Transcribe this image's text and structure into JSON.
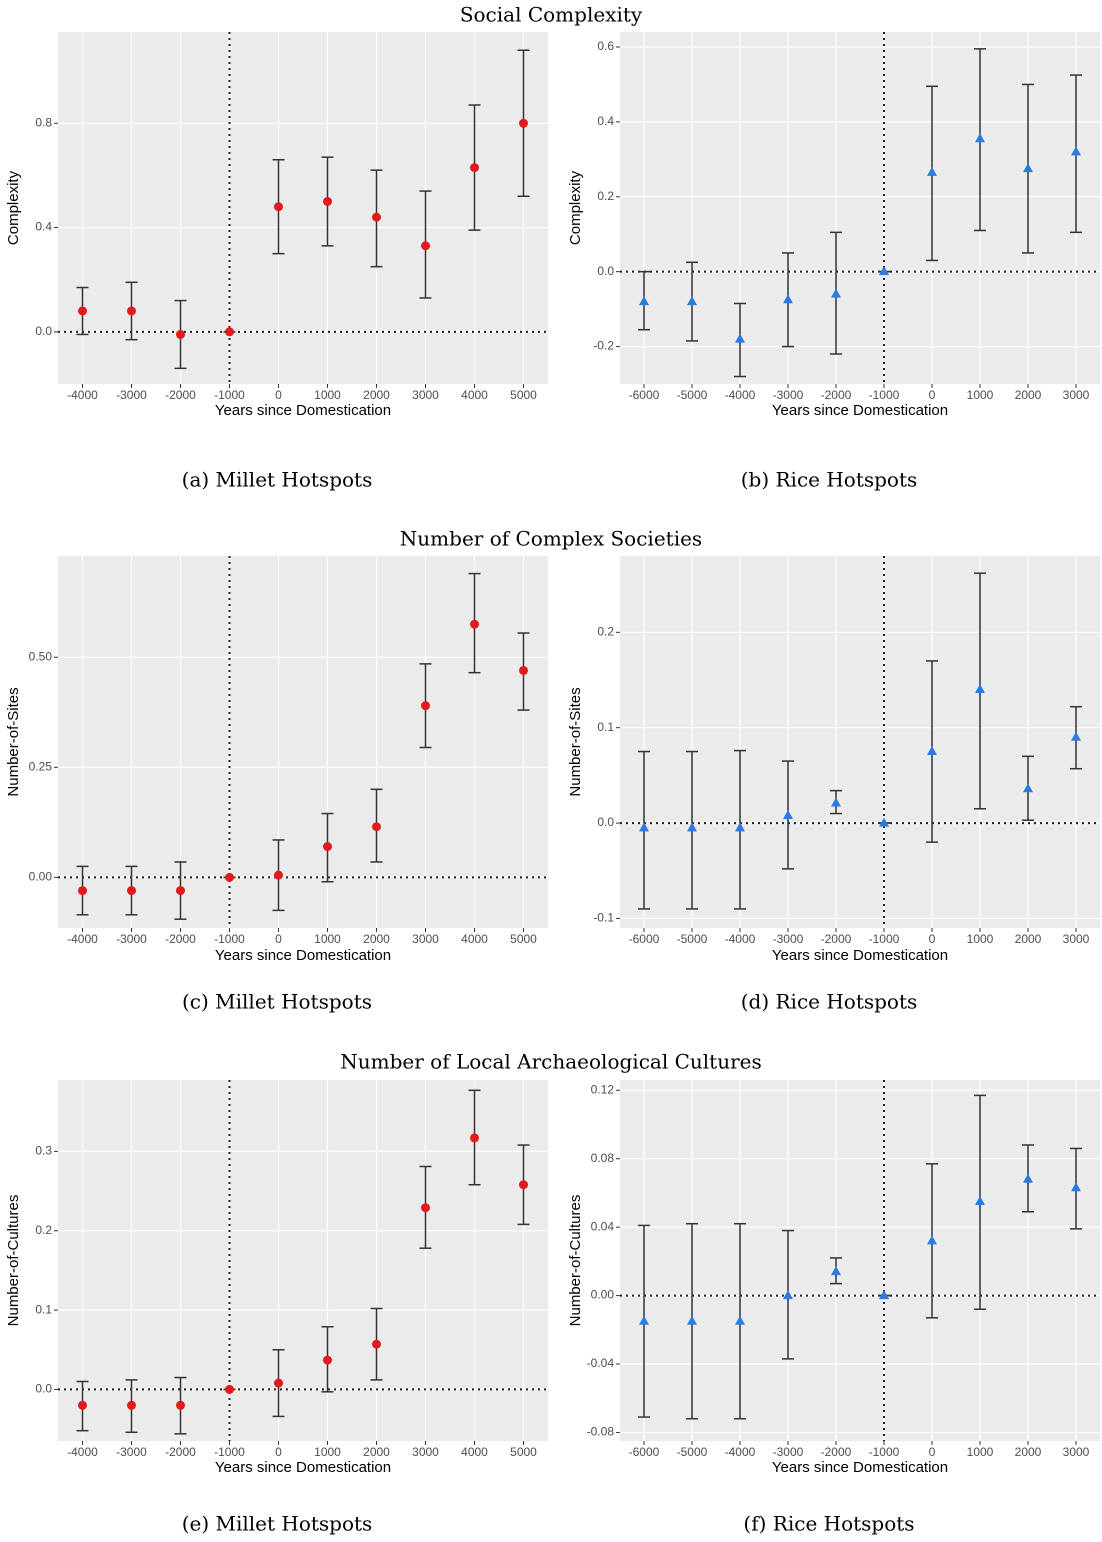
{
  "section_titles": [
    "Social Complexity",
    "Number of Complex Societies",
    "Number of Local Archaeological Cultures"
  ],
  "chart_data": [
    {
      "type": "scatter",
      "caption": "(a) Millet Hotspots",
      "x_label": "Years since Domestication",
      "y_label": "Complexity",
      "x": [
        -4000,
        -3000,
        -2000,
        -1000,
        0,
        1000,
        2000,
        3000,
        4000,
        5000
      ],
      "xlim": [
        -4500,
        5500
      ],
      "xticks": [
        -4000,
        -3000,
        -2000,
        -1000,
        0,
        1000,
        2000,
        3000,
        4000,
        5000
      ],
      "ylim": [
        -0.2,
        1.15
      ],
      "yticks": [
        {
          "value": 0,
          "label": "0.0"
        },
        0.4,
        0.8
      ],
      "grid": true,
      "vline": -1000,
      "hline": 0,
      "series": [
        {
          "color": "#e31a1c",
          "marker": "circle",
          "values": [
            0.08,
            0.08,
            -0.01,
            0,
            0.48,
            0.5,
            0.44,
            0.33,
            0.63,
            0.8
          ],
          "lower": [
            -0.01,
            -0.03,
            -0.14,
            0,
            0.3,
            0.33,
            0.25,
            0.13,
            0.39,
            0.52
          ],
          "upper": [
            0.17,
            0.19,
            0.12,
            0,
            0.66,
            0.67,
            0.62,
            0.54,
            0.87,
            1.08
          ]
        }
      ]
    },
    {
      "type": "scatter",
      "caption": "(b) Rice Hotspots",
      "x_label": "Years since Domestication",
      "y_label": "Complexity",
      "x": [
        -6000,
        -5000,
        -4000,
        -3000,
        -2000,
        -1000,
        0,
        1000,
        2000,
        3000
      ],
      "xlim": [
        -6500,
        3500
      ],
      "xticks": [
        -6000,
        -5000,
        -4000,
        -3000,
        -2000,
        -1000,
        0,
        1000,
        2000,
        3000
      ],
      "ylim": [
        -0.3,
        0.64
      ],
      "yticks": [
        -0.2,
        {
          "value": 0,
          "label": "0.0"
        },
        0.2,
        0.4,
        0.6
      ],
      "grid": true,
      "vline": -1000,
      "hline": 0,
      "series": [
        {
          "color": "#2b7bde",
          "marker": "triangle",
          "values": [
            -0.08,
            -0.08,
            -0.18,
            -0.075,
            -0.06,
            0,
            0.265,
            0.355,
            0.275,
            0.32
          ],
          "lower": [
            -0.155,
            -0.185,
            -0.28,
            -0.2,
            -0.22,
            0,
            0.03,
            0.11,
            0.05,
            0.105
          ],
          "upper": [
            0,
            0.025,
            -0.085,
            0.05,
            0.105,
            0,
            0.495,
            0.595,
            0.5,
            0.525
          ]
        }
      ]
    },
    {
      "type": "scatter",
      "caption": "(c) Millet Hotspots",
      "x_label": "Years since Domestication",
      "y_label": "Number-of-Sites",
      "x": [
        -4000,
        -3000,
        -2000,
        -1000,
        0,
        1000,
        2000,
        3000,
        4000,
        5000
      ],
      "xlim": [
        -4500,
        5500
      ],
      "xticks": [
        -4000,
        -3000,
        -2000,
        -1000,
        0,
        1000,
        2000,
        3000,
        4000,
        5000
      ],
      "ylim": [
        -0.115,
        0.73
      ],
      "yticks": [
        {
          "value": 0,
          "label": "0.00"
        },
        0.25,
        {
          "value": 0.5,
          "label": "0.50"
        }
      ],
      "grid": true,
      "vline": -1000,
      "hline": 0,
      "series": [
        {
          "color": "#e31a1c",
          "marker": "circle",
          "values": [
            -0.03,
            -0.03,
            -0.03,
            0,
            0.005,
            0.07,
            0.115,
            0.39,
            0.575,
            0.47
          ],
          "lower": [
            -0.085,
            -0.085,
            -0.095,
            0,
            -0.075,
            -0.01,
            0.035,
            0.295,
            0.465,
            0.38
          ],
          "upper": [
            0.025,
            0.025,
            0.035,
            0,
            0.085,
            0.145,
            0.2,
            0.485,
            0.69,
            0.555
          ]
        }
      ]
    },
    {
      "type": "scatter",
      "caption": "(d) Rice Hotspots",
      "x_label": "Years since Domestication",
      "y_label": "Number-of-Sites",
      "x": [
        -6000,
        -5000,
        -4000,
        -3000,
        -2000,
        -1000,
        0,
        1000,
        2000,
        3000
      ],
      "xlim": [
        -6500,
        3500
      ],
      "xticks": [
        -6000,
        -5000,
        -4000,
        -3000,
        -2000,
        -1000,
        0,
        1000,
        2000,
        3000
      ],
      "ylim": [
        -0.11,
        0.28
      ],
      "yticks": [
        -0.1,
        {
          "value": 0,
          "label": "0.0"
        },
        0.1,
        0.2
      ],
      "grid": true,
      "vline": -1000,
      "hline": 0,
      "series": [
        {
          "color": "#2b7bde",
          "marker": "triangle",
          "values": [
            -0.005,
            -0.005,
            -0.005,
            0.008,
            0.021,
            0,
            0.075,
            0.14,
            0.036,
            0.09
          ],
          "lower": [
            -0.09,
            -0.09,
            -0.09,
            -0.048,
            0.01,
            0,
            -0.02,
            0.015,
            0.003,
            0.057
          ],
          "upper": [
            0.075,
            0.075,
            0.076,
            0.065,
            0.034,
            0,
            0.17,
            0.262,
            0.07,
            0.122
          ]
        }
      ]
    },
    {
      "type": "scatter",
      "caption": "(e) Millet Hotspots",
      "x_label": "Years since Domestication",
      "y_label": "Number-of-Cultures",
      "x": [
        -4000,
        -3000,
        -2000,
        -1000,
        0,
        1000,
        2000,
        3000,
        4000,
        5000
      ],
      "xlim": [
        -4500,
        5500
      ],
      "xticks": [
        -4000,
        -3000,
        -2000,
        -1000,
        0,
        1000,
        2000,
        3000,
        4000,
        5000
      ],
      "ylim": [
        -0.065,
        0.39
      ],
      "yticks": [
        {
          "value": 0,
          "label": "0.0"
        },
        0.1,
        0.2,
        0.3
      ],
      "grid": true,
      "vline": -1000,
      "hline": 0,
      "series": [
        {
          "color": "#e31a1c",
          "marker": "circle",
          "values": [
            -0.02,
            -0.02,
            -0.02,
            0,
            0.008,
            0.037,
            0.057,
            0.229,
            0.317,
            0.258
          ],
          "lower": [
            -0.052,
            -0.054,
            -0.056,
            0,
            -0.034,
            -0.003,
            0.012,
            0.178,
            0.258,
            0.208
          ],
          "upper": [
            0.01,
            0.012,
            0.015,
            0,
            0.05,
            0.079,
            0.102,
            0.281,
            0.377,
            0.308
          ]
        }
      ]
    },
    {
      "type": "scatter",
      "caption": "(f) Rice Hotspots",
      "x_label": "Years since Domestication",
      "y_label": "Number-of-Cultures",
      "x": [
        -6000,
        -5000,
        -4000,
        -3000,
        -2000,
        -1000,
        0,
        1000,
        2000,
        3000
      ],
      "xlim": [
        -6500,
        3500
      ],
      "xticks": [
        -6000,
        -5000,
        -4000,
        -3000,
        -2000,
        -1000,
        0,
        1000,
        2000,
        3000
      ],
      "ylim": [
        -0.085,
        0.126
      ],
      "yticks": [
        -0.08,
        -0.04,
        {
          "value": 0,
          "label": "0.00"
        },
        0.04,
        0.08,
        0.12
      ],
      "grid": true,
      "vline": -1000,
      "hline": 0,
      "series": [
        {
          "color": "#2b7bde",
          "marker": "triangle",
          "values": [
            -0.015,
            -0.015,
            -0.015,
            0,
            0.014,
            0,
            0.032,
            0.055,
            0.068,
            0.063
          ],
          "lower": [
            -0.071,
            -0.072,
            -0.072,
            -0.037,
            0.007,
            0,
            -0.013,
            -0.008,
            0.049,
            0.039
          ],
          "upper": [
            0.041,
            0.042,
            0.042,
            0.038,
            0.022,
            0,
            0.077,
            0.117,
            0.088,
            0.086
          ]
        }
      ]
    }
  ]
}
